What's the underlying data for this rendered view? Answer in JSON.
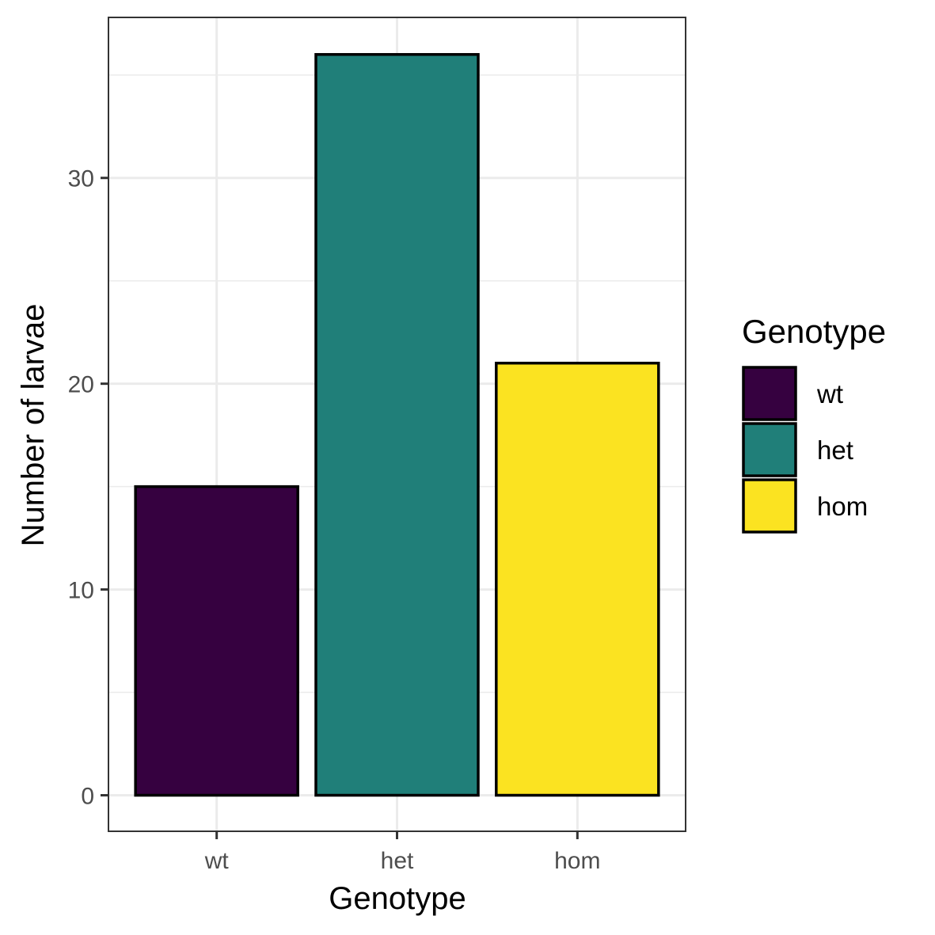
{
  "chart_data": {
    "type": "bar",
    "title": "",
    "xlabel": "Genotype",
    "ylabel": "Number of larvae",
    "categories": [
      "wt",
      "het",
      "hom"
    ],
    "values": [
      15,
      36,
      21
    ],
    "colors": [
      "#360140",
      "#207f79",
      "#fbe321"
    ],
    "ylim": [
      -1.75,
      37.8
    ],
    "yticks": [
      0,
      10,
      20,
      30
    ],
    "ytick_labels": [
      "0",
      "10",
      "20",
      "30"
    ],
    "grid": true,
    "legend": {
      "title": "Genotype",
      "placement": "right",
      "entries": [
        "wt",
        "het",
        "hom"
      ]
    }
  }
}
